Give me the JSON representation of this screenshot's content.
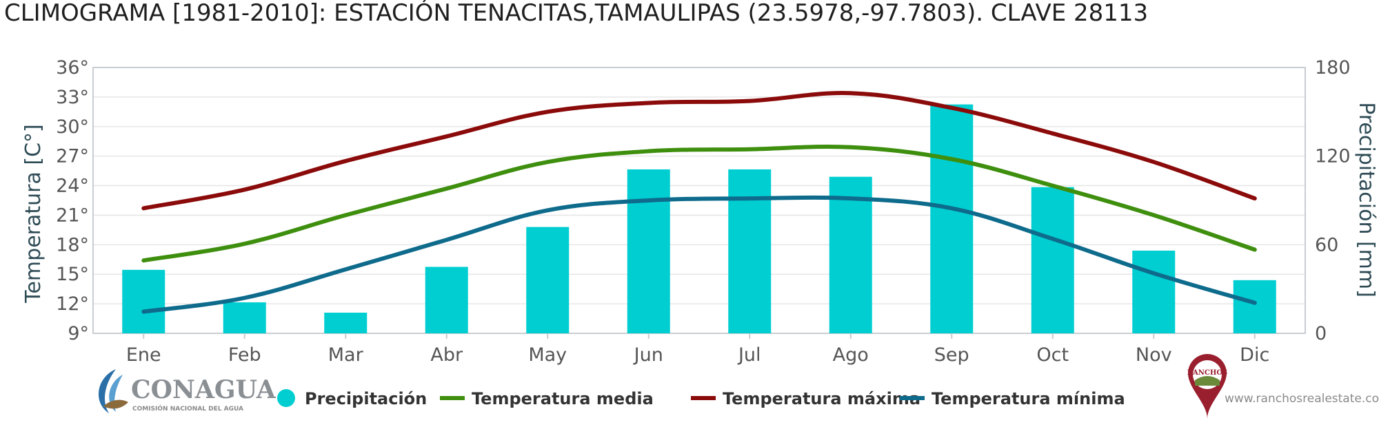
{
  "header": {
    "title": "CLIMOGRAMA [1981-2010]: ESTACIÓN TENACITAS,TAMAULIPAS (23.5978,-97.7803). CLAVE 28113"
  },
  "chart_data": {
    "type": "bar",
    "title": "CLIMOGRAMA [1981-2010]: ESTACIÓN TENACITAS,TAMAULIPAS (23.5978,-97.7803). CLAVE 28113",
    "categories": [
      "Ene",
      "Feb",
      "Mar",
      "Abr",
      "May",
      "Jun",
      "Jul",
      "Ago",
      "Sep",
      "Oct",
      "Nov",
      "Dic"
    ],
    "y_left": {
      "label": "Temperatura [C°]",
      "min": 9,
      "max": 36,
      "ticks": [
        9,
        12,
        15,
        18,
        21,
        24,
        27,
        30,
        33,
        36
      ],
      "tick_labels": [
        "9°",
        "12°",
        "15°",
        "18°",
        "21°",
        "24°",
        "27°",
        "30°",
        "33°",
        "36°"
      ]
    },
    "y_right": {
      "label": "Precipitación [mm]",
      "min": 0,
      "max": 180,
      "ticks": [
        0,
        60,
        120,
        180
      ],
      "tick_labels": [
        "0",
        "60",
        "120",
        "180"
      ]
    },
    "grid": true,
    "legend_position": "bottom",
    "series": [
      {
        "name": "Precipitación",
        "type": "bar",
        "axis": "right",
        "color": "#00ced1",
        "values": [
          43,
          21,
          14,
          45,
          72,
          111,
          111,
          106,
          155,
          99,
          56,
          36
        ]
      },
      {
        "name": "Temperatura media",
        "type": "line",
        "axis": "left",
        "color": "#3f8f0f",
        "values": [
          16.4,
          18.1,
          21.0,
          23.7,
          26.4,
          27.5,
          27.7,
          27.9,
          26.7,
          24.0,
          21.0,
          17.5
        ]
      },
      {
        "name": "Temperatura máxima",
        "type": "line",
        "axis": "left",
        "color": "#8b0a0a",
        "values": [
          21.7,
          23.6,
          26.5,
          29.0,
          31.5,
          32.4,
          32.6,
          33.4,
          31.9,
          29.3,
          26.4,
          22.7
        ]
      },
      {
        "name": "Temperatura mínima",
        "type": "line",
        "axis": "left",
        "color": "#0e6b8c",
        "values": [
          11.2,
          12.6,
          15.5,
          18.5,
          21.5,
          22.5,
          22.7,
          22.7,
          21.7,
          18.6,
          15.1,
          12.1
        ]
      }
    ]
  },
  "logos": {
    "left_name": "CONAGUA",
    "left_subtitle": "COMISIÓN NACIONAL DEL AGUA",
    "right_name": "RANCHOS",
    "right_url": "www.ranchosrealestate.com"
  }
}
